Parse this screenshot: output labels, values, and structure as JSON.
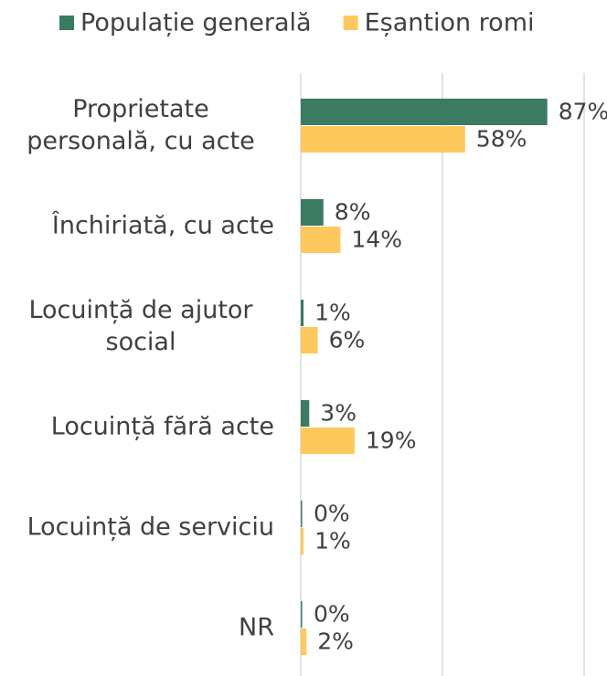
{
  "chart_data": {
    "type": "hbar",
    "categories": [
      "Proprietate personală, cu acte",
      "Închiriată, cu acte",
      "Locuință de ajutor social",
      "Locuință fără acte",
      "Locuință de serviciu",
      "NR"
    ],
    "series": [
      {
        "name": "Populație generală",
        "color": "#3b7b62",
        "values": [
          87,
          8,
          1,
          3,
          0,
          0
        ],
        "value_labels": [
          "87%",
          "8%",
          "1%",
          "3%",
          "0%",
          "0%"
        ]
      },
      {
        "name": "Eșantion romi",
        "color": "#ffc85c",
        "values": [
          58,
          14,
          6,
          19,
          1,
          2
        ],
        "value_labels": [
          "58%",
          "14%",
          "6%",
          "19%",
          "1%",
          "2%"
        ]
      }
    ],
    "xlim": [
      0,
      100
    ],
    "xticks": [
      0,
      50,
      100
    ],
    "grid": true,
    "legend": "top"
  }
}
